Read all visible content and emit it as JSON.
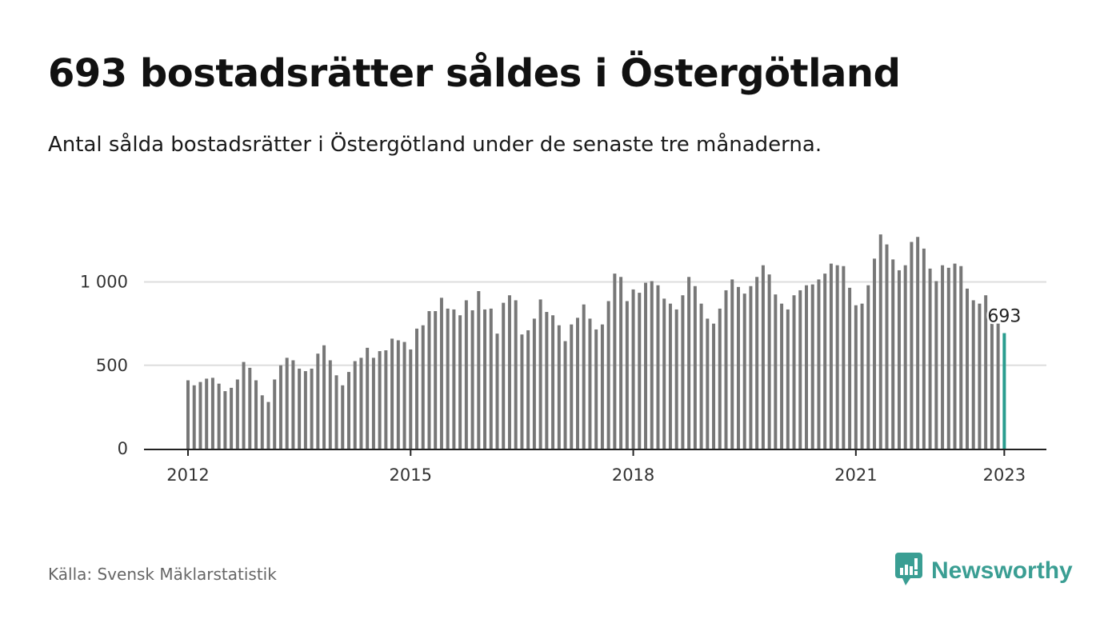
{
  "header": {
    "title": "693 bostadsrätter såldes i Östergötland",
    "subtitle": "Antal sålda bostadsrätter i Östergötland under de senaste tre månaderna."
  },
  "footer": {
    "source": "Källa: Svensk Mäklarstatistik",
    "brand": "Newsworthy",
    "brand_icon": "bar-chart-speech-bubble-icon"
  },
  "colors": {
    "bar": "#777777",
    "highlight": "#2a9d8f",
    "grid": "#dddddd",
    "axis": "#222222",
    "brand": "#3a9e93"
  },
  "chart_data": {
    "type": "bar",
    "title": "693 bostadsrätter såldes i Östergötland",
    "subtitle": "Antal sålda bostadsrätter i Östergötland under de senaste tre månaderna.",
    "xlabel": "",
    "ylabel": "",
    "ylim": [
      0,
      1300
    ],
    "yticks": [
      0,
      500,
      1000
    ],
    "ytick_labels": [
      "0",
      "500",
      "1 000"
    ],
    "xticks": [
      2012,
      2015,
      2018,
      2021,
      2023
    ],
    "xtick_labels": [
      "2012",
      "2015",
      "2018",
      "2021",
      "2023"
    ],
    "x_start": "2012-01",
    "x_end": "2023-01",
    "grid": true,
    "highlight_last": true,
    "annotation": {
      "label": "693",
      "value": 693
    },
    "values": [
      410,
      380,
      400,
      420,
      425,
      390,
      345,
      365,
      415,
      520,
      485,
      410,
      320,
      280,
      415,
      500,
      545,
      530,
      480,
      465,
      480,
      570,
      620,
      530,
      440,
      380,
      460,
      525,
      545,
      605,
      545,
      585,
      590,
      660,
      650,
      640,
      595,
      720,
      740,
      825,
      825,
      905,
      840,
      835,
      800,
      890,
      830,
      945,
      835,
      840,
      690,
      875,
      920,
      890,
      685,
      710,
      780,
      895,
      820,
      800,
      740,
      645,
      745,
      785,
      865,
      780,
      715,
      745,
      885,
      1050,
      1030,
      885,
      955,
      935,
      995,
      1005,
      980,
      900,
      870,
      835,
      920,
      1030,
      975,
      870,
      780,
      750,
      840,
      950,
      1015,
      970,
      930,
      975,
      1030,
      1100,
      1045,
      925,
      870,
      835,
      920,
      950,
      980,
      985,
      1015,
      1050,
      1110,
      1100,
      1095,
      965,
      860,
      870,
      980,
      1140,
      1285,
      1225,
      1135,
      1070,
      1100,
      1240,
      1270,
      1200,
      1080,
      1005,
      1100,
      1085,
      1110,
      1095,
      960,
      890,
      870,
      920,
      750,
      750,
      693
    ]
  }
}
